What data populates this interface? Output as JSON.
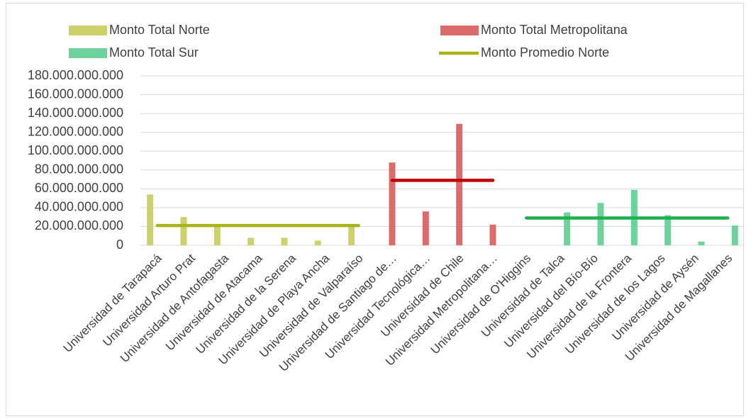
{
  "chart_data": {
    "type": "bar",
    "categories": [
      "Universidad de Tarapacá",
      "Universidad Arturo Prat",
      "Universidad de Antofagasta",
      "Universidad de Atacama",
      "Universidad de la Serena",
      "Universidad de Playa Ancha",
      "Universidad de Valparaíso",
      "Universidad de Santiago de…",
      "Universidad Tecnológica…",
      "Universidad de Chile",
      "Universidad Metropolitana…",
      "Universidad de O'Higgins",
      "Universidad de Talca",
      "Universidad del Bío-Bío",
      "Universidad de la Frontera",
      "Universidad de los Lagos",
      "Universidad de Aysén",
      "Universidad de Magallanes"
    ],
    "series": [
      {
        "name": "Monto Total Norte",
        "color": "#cdd16b",
        "type": "bar",
        "values": [
          54000000000,
          30000000000,
          21000000000,
          8000000000,
          8000000000,
          5000000000,
          21000000000,
          null,
          null,
          null,
          null,
          null,
          null,
          null,
          null,
          null,
          null,
          null
        ]
      },
      {
        "name": "Monto Total Metropolitana",
        "color": "#de6b6b",
        "type": "bar",
        "values": [
          null,
          null,
          null,
          null,
          null,
          null,
          null,
          88000000000,
          36000000000,
          129000000000,
          22000000000,
          null,
          null,
          null,
          null,
          null,
          null,
          null
        ]
      },
      {
        "name": "Monto Total Sur",
        "color": "#6dd39a",
        "type": "bar",
        "values": [
          null,
          null,
          null,
          null,
          null,
          null,
          null,
          null,
          null,
          null,
          null,
          null,
          35000000000,
          45000000000,
          59000000000,
          32000000000,
          4000000000,
          21000000000
        ]
      },
      {
        "name": "Monto Promedio Norte",
        "color": "#a9b41a",
        "type": "line",
        "values": [
          21000000000,
          21000000000,
          21000000000,
          21000000000,
          21000000000,
          21000000000,
          21000000000,
          null,
          null,
          null,
          null,
          null,
          null,
          null,
          null,
          null,
          null,
          null
        ]
      },
      {
        "color": "#c00000",
        "type": "line",
        "values": [
          null,
          null,
          null,
          null,
          null,
          null,
          null,
          69000000000,
          69000000000,
          69000000000,
          69000000000,
          null,
          null,
          null,
          null,
          null,
          null,
          null
        ]
      },
      {
        "color": "#1db04c",
        "type": "line",
        "values": [
          null,
          null,
          null,
          null,
          null,
          null,
          null,
          null,
          null,
          null,
          null,
          29000000000,
          29000000000,
          29000000000,
          29000000000,
          29000000000,
          29000000000,
          29000000000
        ]
      }
    ],
    "ylim": [
      0,
      180000000000
    ],
    "yticks": [
      0,
      {
        "value": 20000000000,
        "label": "20.000.000.000"
      },
      {
        "value": 40000000000,
        "label": "40.000.000.000"
      },
      {
        "value": 60000000000,
        "label": "60.000.000.000"
      },
      {
        "value": 80000000000,
        "label": "80.000.000.000"
      },
      {
        "value": 100000000000,
        "label": "100.000.000.000"
      },
      {
        "value": 120000000000,
        "label": "120.000.000.000"
      },
      {
        "value": 140000000000,
        "label": "140.000.000.000"
      },
      {
        "value": 160000000000,
        "label": "160.000.000.000"
      },
      {
        "value": 180000000000,
        "label": "180.000.000.000"
      }
    ],
    "grid": true,
    "legend": "top"
  }
}
